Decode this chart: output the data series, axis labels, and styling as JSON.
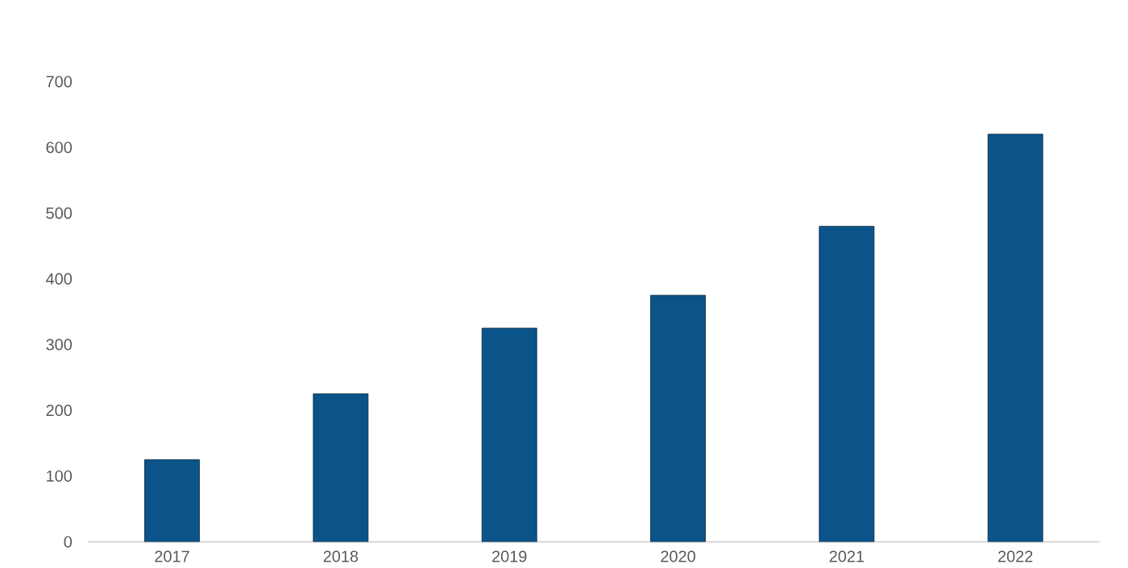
{
  "chart_data": {
    "type": "bar",
    "categories": [
      "2017",
      "2018",
      "2019",
      "2020",
      "2021",
      "2022"
    ],
    "values": [
      125,
      225,
      325,
      375,
      480,
      620
    ],
    "color": "#0b5489",
    "ylim": [
      0,
      700
    ],
    "yticks": [
      0,
      100,
      200,
      300,
      400,
      500,
      600,
      700
    ],
    "grid": false
  }
}
